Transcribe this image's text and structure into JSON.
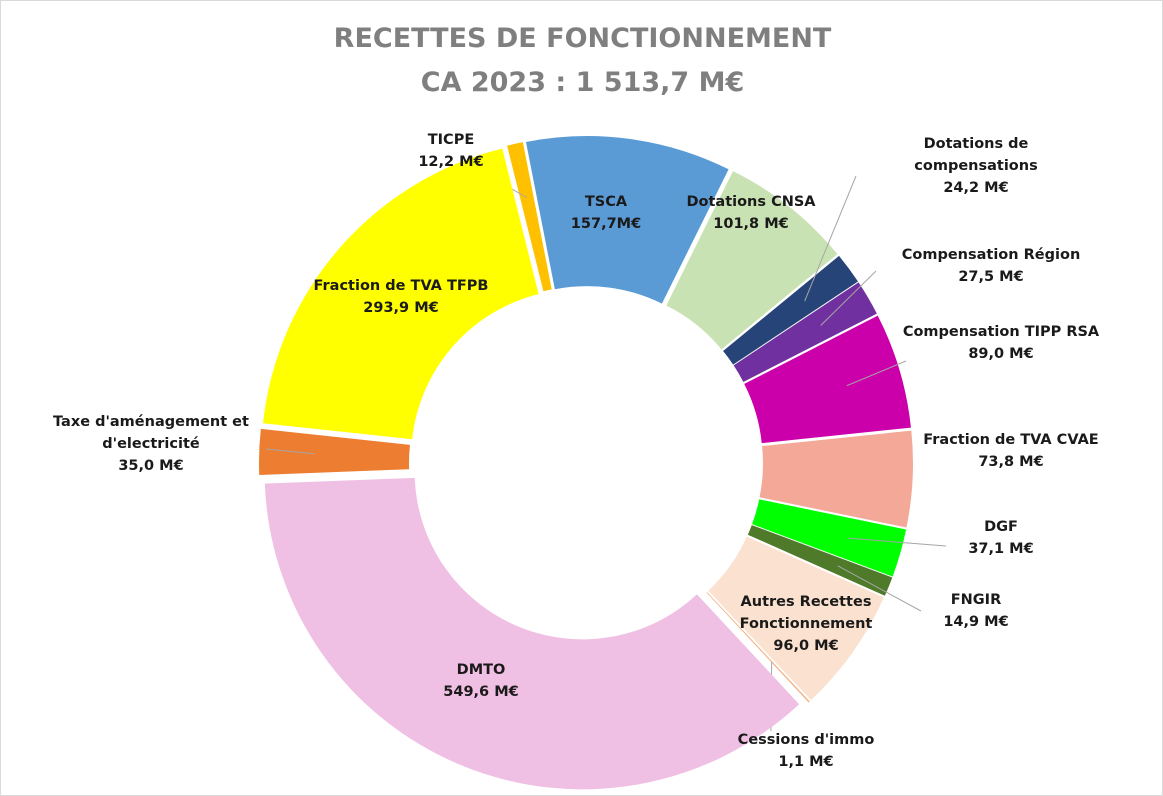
{
  "chart_data": {
    "type": "donut",
    "title": "RECETTES DE FONCTIONNEMENT",
    "subtitle": "CA 2023 : 1 513,7 M€",
    "categories": [
      "TICPE",
      "TSCA",
      "Dotations CNSA",
      "Dotations de compensations",
      "Compensation Région",
      "Compensation TIPP RSA",
      "Fraction de TVA CVAE",
      "DGF",
      "FNGIR",
      "Autres Recettes Fonctionnement",
      "Cessions d'immo",
      "DMTO",
      "Taxe d'aménagement et d'electricité",
      "Fraction de TVA TFPB"
    ],
    "values": [
      12.2,
      157.7,
      101.8,
      24.2,
      27.5,
      89.0,
      73.8,
      37.1,
      14.9,
      96.0,
      1.1,
      549.6,
      35.0,
      293.9
    ],
    "value_labels": [
      "12,2 M€",
      "157,7M€",
      "101,8 M€",
      "24,2 M€",
      "27,5 M€",
      "89,0 M€",
      "73,8 M€",
      "37,1 M€",
      "14,9 M€",
      "96,0 M€",
      "1,1 M€",
      "549,6 M€",
      "35,0 M€",
      "293,9 M€"
    ],
    "colors": [
      "#ffc000",
      "#5b9bd5",
      "#c9e2b3",
      "#264478",
      "#7030a0",
      "#cc00aa",
      "#f4a897",
      "#00ff00",
      "#4e7a2a",
      "#fbe2d0",
      "#f4b183",
      "#f0bfe4",
      "#ed7d31",
      "#ffff00"
    ]
  }
}
